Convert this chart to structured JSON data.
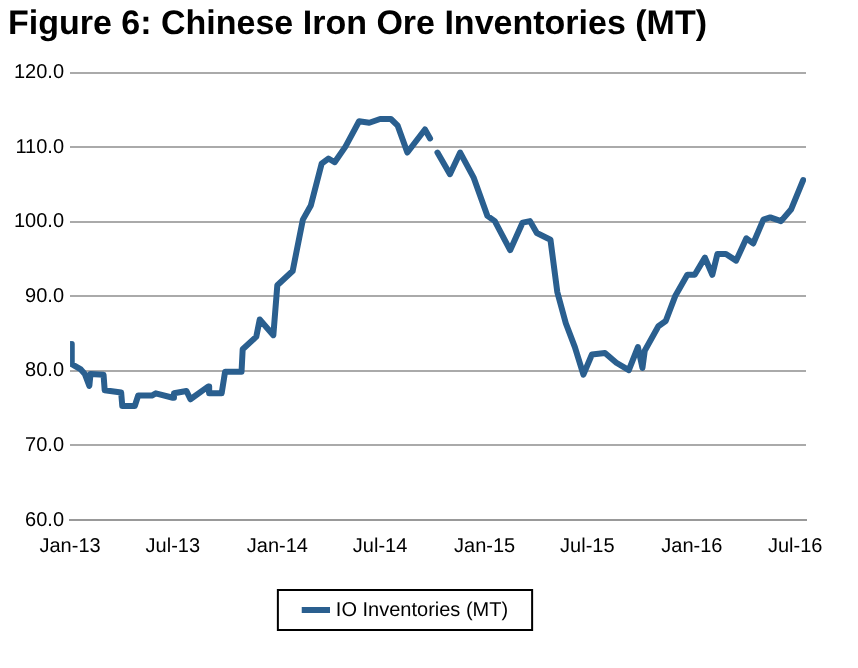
{
  "chart_data": {
    "type": "line",
    "title": "Figure 6: Chinese Iron Ore Inventories (MT)",
    "x": [
      "2013-01-01",
      "2013-01-04",
      "2013-01-20",
      "2013-01-27",
      "2013-02-04",
      "2013-02-06",
      "2013-03-01",
      "2013-03-03",
      "2013-04-01",
      "2013-04-03",
      "2013-04-25",
      "2013-05-01",
      "2013-05-25",
      "2013-06-01",
      "2013-07-01",
      "2013-07-03",
      "2013-07-25",
      "2013-08-01",
      "2013-09-01",
      "2013-09-03",
      "2013-09-25",
      "2013-10-01",
      "2013-10-30",
      "2013-11-01",
      "2013-11-25",
      "2013-12-01",
      "2013-12-25",
      "2014-01-01",
      "2014-01-28",
      "2014-02-15",
      "2014-03-01",
      "2014-03-20",
      "2014-04-01",
      "2014-04-12",
      "2014-05-01",
      "2014-05-25",
      "2014-06-12",
      "2014-07-01",
      "2014-07-20",
      "2014-08-01",
      "2014-08-18",
      "2014-09-18",
      "2014-09-27",
      "2014-10-03",
      "2014-10-10",
      "2014-11-01",
      "2014-11-19",
      "2014-12-13",
      "2015-01-06",
      "2015-01-19",
      "2015-02-15",
      "2015-03-09",
      "2015-03-22",
      "2015-04-03",
      "2015-04-27",
      "2015-05-09",
      "2015-05-24",
      "2015-06-09",
      "2015-06-24",
      "2015-07-09",
      "2015-08-01",
      "2015-08-21",
      "2015-09-12",
      "2015-09-28",
      "2015-10-06",
      "2015-10-10",
      "2015-11-03",
      "2015-11-16",
      "2015-12-03",
      "2015-12-24",
      "2016-01-06",
      "2016-01-24",
      "2016-02-06",
      "2016-02-15",
      "2016-03-01",
      "2016-03-19",
      "2016-04-06",
      "2016-04-18",
      "2016-05-06",
      "2016-05-18",
      "2016-06-06",
      "2016-06-24",
      "2016-07-15"
    ],
    "series": [
      {
        "name": "IO Inventories (MT)",
        "color": "#2a5f8f",
        "values": [
          83.6,
          80.9,
          80.2,
          79.6,
          78,
          79.6,
          79.5,
          77.4,
          77.1,
          75.3,
          75.3,
          76.7,
          76.7,
          77,
          76.4,
          77,
          77.3,
          76.2,
          77.9,
          77,
          77,
          79.9,
          79.9,
          82.9,
          84.6,
          86.9,
          84.8,
          91.5,
          93.4,
          100.3,
          102.2,
          107.8,
          108.5,
          108,
          110.1,
          113.5,
          113.3,
          113.8,
          113.8,
          112.9,
          109.3,
          112.4,
          111.2,
          null,
          109.3,
          106.4,
          109.3,
          105.9,
          100.8,
          100.1,
          96.2,
          99.9,
          100.1,
          98.5,
          97.6,
          90.6,
          86.4,
          83.2,
          79.5,
          82.2,
          82.4,
          81.1,
          80.1,
          83.2,
          80.4,
          82.7,
          86,
          86.7,
          90.1,
          92.9,
          92.9,
          95.2,
          92.9,
          95.7,
          95.7,
          94.8,
          97.8,
          97.1,
          100.3,
          100.6,
          100.1,
          101.7,
          105.6
        ]
      }
    ],
    "xlim": [
      "2013-01-01",
      "2016-07-20"
    ],
    "xticks": [
      {
        "value": "2013-01",
        "label": "Jan-13"
      },
      {
        "value": "2013-07",
        "label": "Jul-13"
      },
      {
        "value": "2014-01",
        "label": "Jan-14"
      },
      {
        "value": "2014-07",
        "label": "Jul-14"
      },
      {
        "value": "2015-01",
        "label": "Jan-15"
      },
      {
        "value": "2015-07",
        "label": "Jul-15"
      },
      {
        "value": "2016-01",
        "label": "Jan-16"
      },
      {
        "value": "2016-07",
        "label": "Jul-16"
      }
    ],
    "ylim": [
      60,
      120
    ],
    "yticks": [
      {
        "value": 60,
        "label": "60.0"
      },
      {
        "value": 70,
        "label": "70.0"
      },
      {
        "value": 80,
        "label": "80.0"
      },
      {
        "value": 90,
        "label": "90.0"
      },
      {
        "value": 100,
        "label": "100.0"
      },
      {
        "value": 110,
        "label": "110.0"
      },
      {
        "value": 120,
        "label": "120.0"
      }
    ],
    "grid": "y",
    "legend": "bottom",
    "marker": "none",
    "line_style": "solid"
  }
}
